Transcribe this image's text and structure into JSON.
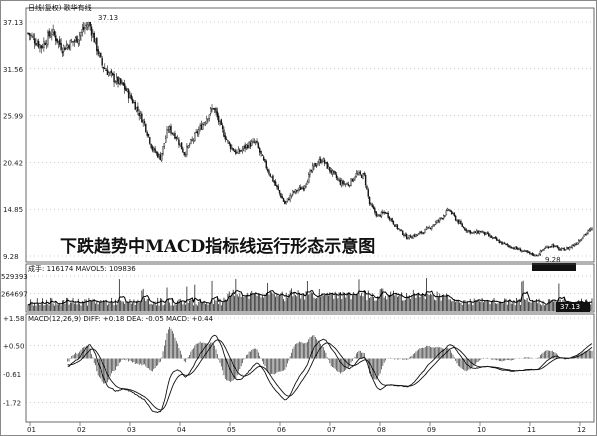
{
  "chart_data": [
    {
      "type": "candlestick",
      "header": "日线(复权)  歌华有线",
      "caption": "下跌趋势中MACD指标线运行形态示意图",
      "high_label": "37.13",
      "low_label": "9.28",
      "yticks": [
        "37.13",
        "31.56",
        "25.99",
        "20.42",
        "14.85",
        "9.28"
      ],
      "ylim": [
        9.28,
        37.13
      ],
      "xticks": [
        "01",
        "02",
        "03",
        "04",
        "05",
        "06",
        "07",
        "08",
        "09",
        "10",
        "11",
        "12"
      ],
      "price_path": [
        [
          0,
          35.8
        ],
        [
          10,
          34.2
        ],
        [
          18,
          36.0
        ],
        [
          26,
          34.0
        ],
        [
          36,
          35.0
        ],
        [
          46,
          37.13
        ],
        [
          56,
          32.0
        ],
        [
          64,
          30.5
        ],
        [
          72,
          29.5
        ],
        [
          80,
          27.5
        ],
        [
          88,
          25.0
        ],
        [
          94,
          22.0
        ],
        [
          100,
          21.0
        ],
        [
          106,
          24.5
        ],
        [
          112,
          23.5
        ],
        [
          118,
          21.5
        ],
        [
          124,
          23.0
        ],
        [
          132,
          25.0
        ],
        [
          140,
          27.0
        ],
        [
          146,
          24.5
        ],
        [
          152,
          22.5
        ],
        [
          158,
          21.5
        ],
        [
          166,
          22.5
        ],
        [
          172,
          22.8
        ],
        [
          178,
          20.5
        ],
        [
          186,
          18.0
        ],
        [
          194,
          15.5
        ],
        [
          200,
          16.8
        ],
        [
          208,
          17.5
        ],
        [
          216,
          20.0
        ],
        [
          222,
          20.8
        ],
        [
          228,
          19.5
        ],
        [
          236,
          18.0
        ],
        [
          242,
          17.8
        ],
        [
          248,
          19.0
        ],
        [
          254,
          18.8
        ],
        [
          258,
          15.5
        ],
        [
          264,
          14.0
        ],
        [
          270,
          14.5
        ],
        [
          278,
          12.8
        ],
        [
          286,
          11.5
        ],
        [
          294,
          11.8
        ],
        [
          302,
          12.5
        ],
        [
          310,
          13.5
        ],
        [
          318,
          14.8
        ],
        [
          324,
          13.5
        ],
        [
          330,
          12.5
        ],
        [
          336,
          12.0
        ],
        [
          342,
          12.2
        ],
        [
          350,
          11.5
        ],
        [
          358,
          10.8
        ],
        [
          366,
          10.3
        ],
        [
          372,
          10.0
        ],
        [
          378,
          9.6
        ],
        [
          384,
          9.28
        ],
        [
          390,
          10.2
        ],
        [
          396,
          10.6
        ],
        [
          402,
          10.0
        ],
        [
          408,
          10.2
        ],
        [
          414,
          10.8
        ],
        [
          420,
          11.8
        ],
        [
          426,
          12.5
        ]
      ],
      "volume_label": "成手: 116174  MAVOL5: 109836",
      "volume_yticks": [
        "529393",
        "264697"
      ],
      "volume_ylim": [
        0,
        529393
      ],
      "volume_inset_label": "37.13",
      "macd_label": "MACD(12,26,9)  DIFF: +0.18  DEA: -0.05  MACD: +0.44",
      "macd_yticks": [
        "+1.58",
        "+0.50",
        "-0.61",
        "-1.72"
      ],
      "macd_ylim": [
        -2.4,
        1.58
      ]
    }
  ]
}
